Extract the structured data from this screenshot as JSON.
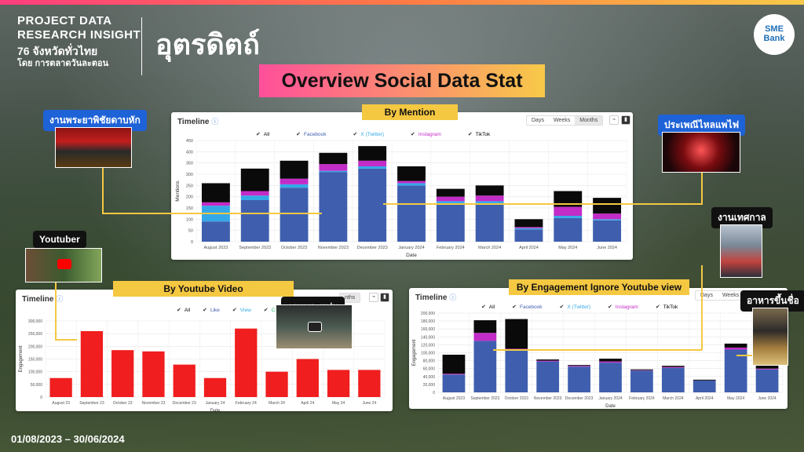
{
  "header": {
    "line1": "PROJECT DATA",
    "line2": "RESEARCH INSIGHT",
    "line3": "76 จังหวัดทั่วไทย",
    "line4": "โดย การตลาดวันละตอน",
    "province": "อุตรดิตถ์",
    "logo_line1": "SME",
    "logo_line2": "Bank",
    "banner": "Overview Social Data Stat"
  },
  "date_range": "01/08/2023 – 30/06/2024",
  "callouts": {
    "top_left": "งานพระยาพิชัยดาบหัก",
    "top_right": "ประเพณีไหลแพไฟ",
    "youtuber": "Youtuber",
    "festival": "งานเทศกาล",
    "monk": "งานพระแท่น",
    "food": "อาหารขึ้นชื่อ"
  },
  "panels": {
    "mention": {
      "tag": "By Mention",
      "title": "Timeline",
      "info": "ⓘ",
      "toggle": [
        "Days",
        "Weeks",
        "Months"
      ],
      "legend": [
        "All",
        "Facebook",
        "X (Twitter)",
        "Instagram",
        "TikTok"
      ]
    },
    "youtube": {
      "tag": "By  Youtube Video",
      "title": "Timeline",
      "info": "ⓘ",
      "toggle_partial": "nths",
      "legend": [
        "All",
        "Like",
        "View",
        "Commen"
      ]
    },
    "engagement": {
      "tag": "By Engagement Ignore Youtube view",
      "title": "Timeline",
      "info": "ⓘ",
      "toggle": [
        "Days",
        "Weeks"
      ],
      "legend": [
        "All",
        "Facebook",
        "X (Twitter)",
        "Instagram",
        "TikTok"
      ]
    }
  },
  "colors": {
    "facebook": "#3f5fae",
    "twitter": "#35a8e8",
    "instagram": "#c22cc7",
    "tiktok": "#0a0a0a",
    "youtube": "#f01e1e",
    "accent_yellow": "#f5c842"
  },
  "chart_data": [
    {
      "type": "bar",
      "stacked": true,
      "xlabel": "Date",
      "ylabel": "Mentions",
      "ylim": [
        0,
        450
      ],
      "yticks": [
        0,
        50,
        100,
        150,
        200,
        250,
        300,
        350,
        400,
        450
      ],
      "categories": [
        "August 2023",
        "September 2023",
        "October 2023",
        "November 2023",
        "December 2023",
        "January 2024",
        "February 2024",
        "March 2024",
        "April 2024",
        "May 2024",
        "June 2024"
      ],
      "series": [
        {
          "name": "Facebook",
          "values": [
            90,
            185,
            240,
            310,
            325,
            250,
            170,
            170,
            55,
            105,
            95
          ]
        },
        {
          "name": "X (Twitter)",
          "values": [
            70,
            20,
            15,
            5,
            10,
            10,
            10,
            10,
            5,
            10,
            5
          ]
        },
        {
          "name": "Instagram",
          "values": [
            15,
            20,
            25,
            30,
            25,
            10,
            20,
            25,
            5,
            40,
            25
          ]
        },
        {
          "name": "TikTok",
          "values": [
            85,
            100,
            80,
            50,
            65,
            65,
            35,
            45,
            35,
            70,
            70
          ]
        }
      ]
    },
    {
      "type": "bar",
      "xlabel": "Date",
      "ylabel": "Engagement",
      "ylim": [
        0,
        300000
      ],
      "yticks": [
        0,
        50000,
        100000,
        150000,
        200000,
        250000,
        300000
      ],
      "ytick_labels": [
        "0",
        "50,000",
        "100,000",
        "150,000",
        "200,000",
        "250,000",
        "300,000"
      ],
      "categories": [
        "August 23",
        "September 23",
        "October 23",
        "November 23",
        "December 23",
        "January 24",
        "February 24",
        "March 24",
        "April 24",
        "May 24",
        "June 24"
      ],
      "values": [
        75000,
        260000,
        185000,
        180000,
        128000,
        75000,
        270000,
        100000,
        150000,
        107000,
        107000
      ]
    },
    {
      "type": "bar",
      "stacked": true,
      "xlabel": "Date",
      "ylabel": "Engagement",
      "ylim": [
        0,
        200000
      ],
      "yticks": [
        0,
        20000,
        40000,
        60000,
        80000,
        100000,
        120000,
        140000,
        160000,
        180000,
        200000
      ],
      "ytick_labels": [
        "0",
        "20,000",
        "40,000",
        "60,000",
        "80,000",
        "100,000",
        "120,000",
        "140,000",
        "160,000",
        "180,000",
        "200,000"
      ],
      "categories": [
        "August 2023",
        "September 2023",
        "October 2023",
        "November 2023",
        "December 2023",
        "January 2024",
        "February 2024",
        "March 2024",
        "April 2024",
        "May 2024",
        "June 2024"
      ],
      "series": [
        {
          "name": "Facebook",
          "values": [
            45000,
            130000,
            105000,
            78000,
            65000,
            75000,
            55000,
            62000,
            30000,
            108000,
            58000
          ]
        },
        {
          "name": "X (Twitter)",
          "values": [
            0,
            0,
            0,
            0,
            0,
            0,
            0,
            0,
            0,
            0,
            0
          ]
        },
        {
          "name": "Instagram",
          "values": [
            2000,
            20000,
            5000,
            2000,
            2000,
            3000,
            1000,
            2000,
            0,
            5000,
            2000
          ]
        },
        {
          "name": "TikTok",
          "values": [
            48000,
            32000,
            75000,
            3000,
            2000,
            7000,
            2000,
            3000,
            2000,
            10000,
            10000
          ]
        }
      ]
    }
  ]
}
